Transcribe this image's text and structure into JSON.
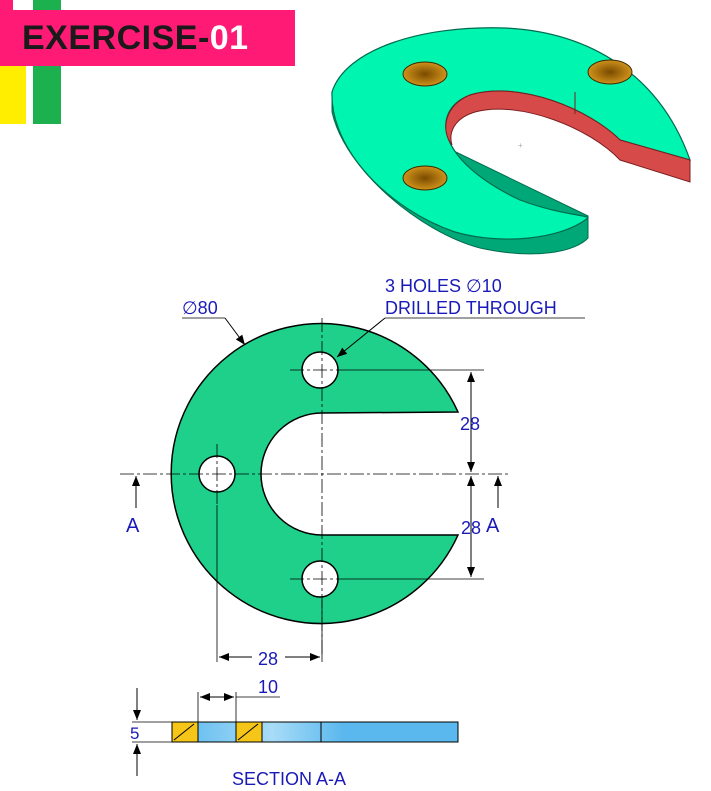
{
  "header": {
    "title_main": "EXERCISE-",
    "title_num": "01"
  },
  "drawing": {
    "diameter_label": "∅80",
    "holes_line1": "3 HOLES ∅10",
    "holes_line2": "DRILLED THROUGH",
    "dim_28_upper": "28",
    "dim_28_lower": "28",
    "dim_28_horizontal": "28",
    "dim_10": "10",
    "dim_5": "5",
    "section_left": "A",
    "section_right": "A",
    "section_caption": "SECTION A-A"
  },
  "colors": {
    "plate": "#1fd08a",
    "plate_top_iso": "#00f5b0",
    "plate_side_iso": "#00a878",
    "slot_wall": "#d64a4a",
    "hole_inner": "#c48a10",
    "dimension_text": "#1a1ab8",
    "section_blue": "#5ab8ee",
    "section_hatch": "#f5c518",
    "banner_pink": "#ff1a75",
    "bar_yellow": "#ffee00",
    "bar_green": "#1db04e"
  }
}
